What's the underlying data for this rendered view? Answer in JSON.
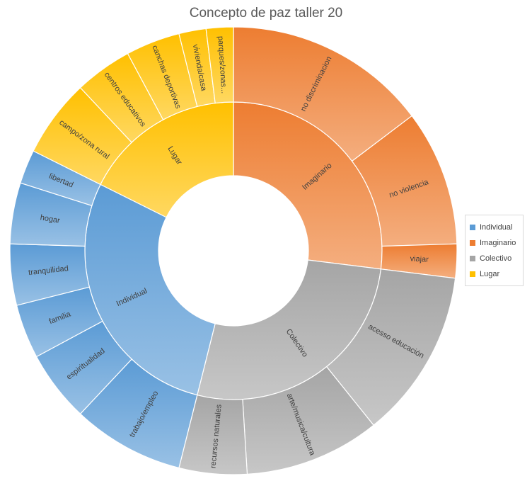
{
  "chart_data": {
    "type": "sunburst",
    "title": "Concepto de paz taller 20",
    "legend_position": "right",
    "groups": [
      {
        "name": "Imaginario",
        "color": "#ed7d31",
        "children": [
          {
            "name": "no discriminacion",
            "value": 6
          },
          {
            "name": "no violencia",
            "value": 4
          },
          {
            "name": "viajar",
            "value": 1
          }
        ]
      },
      {
        "name": "Colectivo",
        "color": "#a5a5a5",
        "children": [
          {
            "name": "acesso educación",
            "value": 5
          },
          {
            "name": "arte/musica/cultura",
            "value": 4
          },
          {
            "name": "recursos naturales",
            "value": 2
          }
        ]
      },
      {
        "name": "Individual",
        "color": "#5b9bd5",
        "children": [
          {
            "name": "trabajo/empleo",
            "value": 3.3
          },
          {
            "name": "espiritualidad",
            "value": 2.1
          },
          {
            "name": "familia",
            "value": 1.6
          },
          {
            "name": "tranquilidad",
            "value": 1.8
          },
          {
            "name": "hogar",
            "value": 1.8
          },
          {
            "name": "libertad",
            "value": 1
          }
        ]
      },
      {
        "name": "Lugar",
        "color": "#ffc000",
        "children": [
          {
            "name": "campo/zona rural",
            "value": 2.3
          },
          {
            "name": "centros educativos",
            "value": 1.7
          },
          {
            "name": "canchas deportivas",
            "value": 1.6
          },
          {
            "name": "vivienda/casa",
            "value": 0.8
          },
          {
            "name": "parques/zonas...",
            "value": 0.8
          }
        ]
      }
    ]
  },
  "legend": [
    {
      "label": "Individual",
      "color": "#5b9bd5"
    },
    {
      "label": "Imaginario",
      "color": "#ed7d31"
    },
    {
      "label": "Colectivo",
      "color": "#a5a5a5"
    },
    {
      "label": "Lugar",
      "color": "#ffc000"
    }
  ]
}
